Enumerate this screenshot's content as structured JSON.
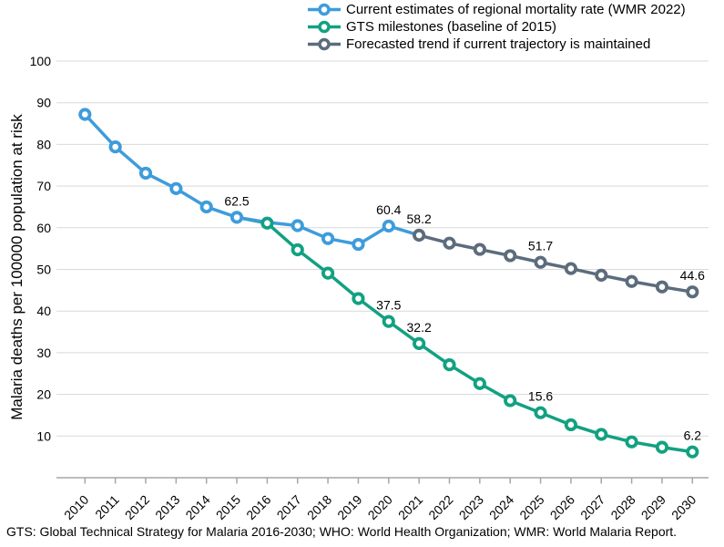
{
  "chart_data": {
    "type": "line",
    "title": "",
    "xlabel": "",
    "ylabel": "Malaria deaths per 100000 population at risk",
    "ylim": [
      0,
      100
    ],
    "yticks": [
      10,
      20,
      30,
      40,
      50,
      60,
      70,
      80,
      90,
      100
    ],
    "xticks": [
      2010,
      2011,
      2012,
      2013,
      2014,
      2015,
      2016,
      2017,
      2018,
      2019,
      2020,
      2021,
      2022,
      2023,
      2024,
      2025,
      2026,
      2027,
      2028,
      2029,
      2030
    ],
    "x": [
      2010,
      2011,
      2012,
      2013,
      2014,
      2015,
      2016,
      2017,
      2018,
      2019,
      2020,
      2021,
      2022,
      2023,
      2024,
      2025,
      2026,
      2027,
      2028,
      2029,
      2030
    ],
    "grid": "horizontal",
    "legend_position": "top-center",
    "series": [
      {
        "id": "wmr",
        "name": "Current estimates of regional mortality rate (WMR 2022)",
        "color": "#3e9cdb",
        "years": [
          2010,
          2011,
          2012,
          2013,
          2014,
          2015,
          2016,
          2017,
          2018,
          2019,
          2020
        ],
        "values": [
          87.2,
          79.4,
          73.1,
          69.4,
          65.0,
          62.5,
          61.3,
          60.5,
          57.4,
          56.0,
          60.4
        ],
        "point_labels": {
          "2015": "62.5",
          "2020": "60.4"
        },
        "hidden_markers": [
          2016
        ],
        "line_extends_to_series": "forecast"
      },
      {
        "id": "gts",
        "name": "GTS milestones (baseline of 2015)",
        "color": "#12a182",
        "years": [
          2015,
          2016,
          2017,
          2018,
          2019,
          2020,
          2021,
          2022,
          2023,
          2024,
          2025,
          2026,
          2027,
          2028,
          2029,
          2030
        ],
        "values": [
          62.5,
          61.1,
          54.7,
          49.1,
          43.0,
          37.5,
          32.2,
          27.1,
          22.6,
          18.5,
          15.6,
          12.7,
          10.4,
          8.6,
          7.3,
          6.2
        ],
        "point_labels": {
          "2020": "37.5",
          "2021": "32.2",
          "2025": "15.6",
          "2030": "6.2"
        },
        "hidden_markers": [
          2015
        ]
      },
      {
        "id": "forecast",
        "name": "Forecasted trend if current trajectory is maintained",
        "color": "#5c6c7d",
        "years": [
          2021,
          2022,
          2023,
          2024,
          2025,
          2026,
          2027,
          2028,
          2029,
          2030
        ],
        "values": [
          58.2,
          56.3,
          54.8,
          53.3,
          51.7,
          50.2,
          48.6,
          47.1,
          45.8,
          44.6
        ],
        "point_labels": {
          "2021": "58.2",
          "2025": "51.7",
          "2030": "44.6"
        }
      }
    ],
    "footnote": "GTS: Global Technical Strategy for Malaria 2016-2030; WHO: World Health Organization; WMR: World Malaria Report."
  },
  "colors": {
    "gridline": "#d9d9d9",
    "axis": "#a6a6a6",
    "text": "#000000",
    "marker_fill": "#ffffff"
  }
}
